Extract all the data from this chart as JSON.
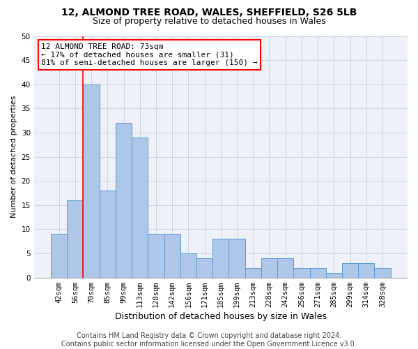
{
  "title1": "12, ALMOND TREE ROAD, WALES, SHEFFIELD, S26 5LB",
  "title2": "Size of property relative to detached houses in Wales",
  "xlabel": "Distribution of detached houses by size in Wales",
  "ylabel": "Number of detached properties",
  "bar_labels": [
    "42sqm",
    "56sqm",
    "70sqm",
    "85sqm",
    "99sqm",
    "113sqm",
    "128sqm",
    "142sqm",
    "156sqm",
    "171sqm",
    "185sqm",
    "199sqm",
    "213sqm",
    "228sqm",
    "242sqm",
    "256sqm",
    "271sqm",
    "285sqm",
    "299sqm",
    "314sqm",
    "328sqm"
  ],
  "bar_values": [
    9,
    16,
    40,
    18,
    32,
    29,
    9,
    9,
    5,
    4,
    8,
    8,
    2,
    4,
    4,
    2,
    2,
    1,
    3,
    3,
    2
  ],
  "bar_color": "#aec6e8",
  "bar_edgecolor": "#5b9bd5",
  "annotation_line1": "12 ALMOND TREE ROAD: 73sqm",
  "annotation_line2": "← 17% of detached houses are smaller (31)",
  "annotation_line3": "81% of semi-detached houses are larger (150) →",
  "vline_x_index": 1.5,
  "annotation_box_edgecolor": "red",
  "ylim": [
    0,
    50
  ],
  "yticks": [
    0,
    5,
    10,
    15,
    20,
    25,
    30,
    35,
    40,
    45,
    50
  ],
  "grid_color": "#c8d0dc",
  "background_color": "#eef2f8",
  "footer": "Contains HM Land Registry data © Crown copyright and database right 2024.\nContains public sector information licensed under the Open Government Licence v3.0.",
  "title1_fontsize": 10,
  "title2_fontsize": 9,
  "xlabel_fontsize": 9,
  "ylabel_fontsize": 8,
  "tick_fontsize": 7.5,
  "footer_fontsize": 7,
  "annotation_fontsize": 8
}
